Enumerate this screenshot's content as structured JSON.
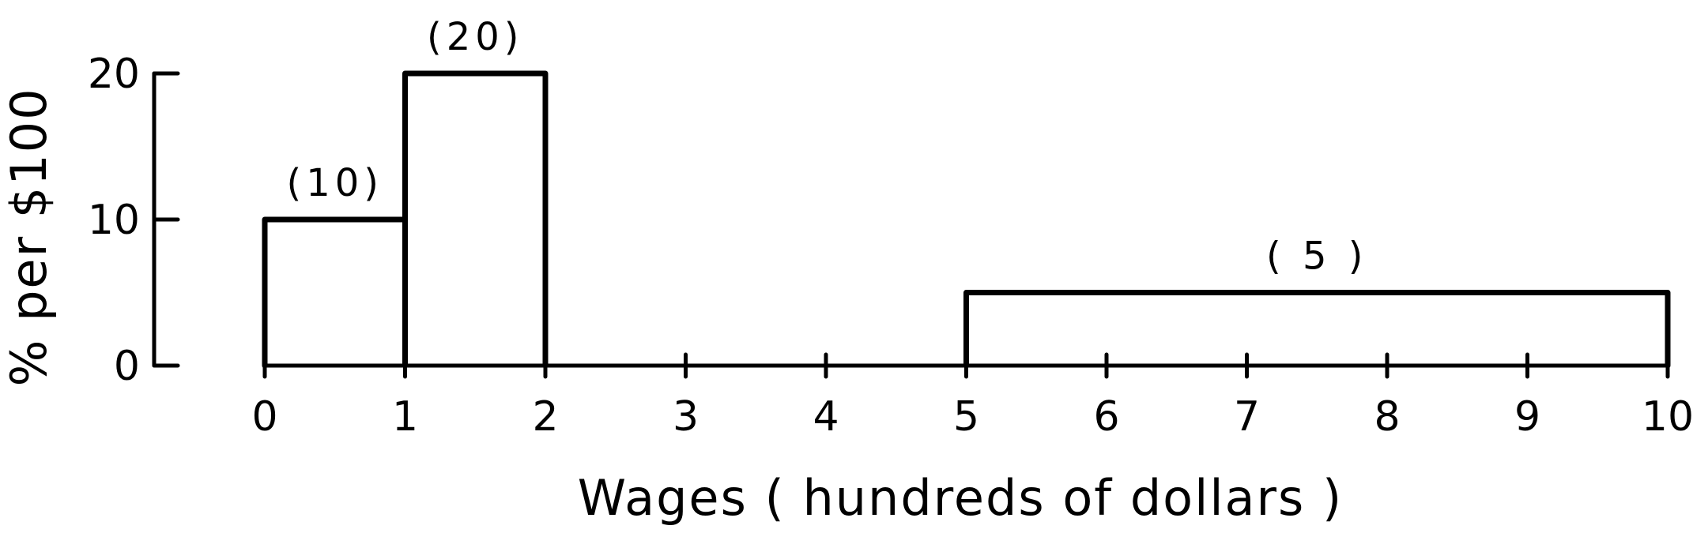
{
  "chart_data": {
    "type": "bar",
    "title": "",
    "xlabel": "Wages ( hundreds of dollars )",
    "ylabel": "% per $100",
    "xlim": [
      0,
      10
    ],
    "ylim": [
      0,
      20
    ],
    "x_ticks": [
      0,
      1,
      2,
      3,
      4,
      5,
      6,
      7,
      8,
      9,
      10
    ],
    "x_tick_labels": [
      "0",
      "1",
      "2",
      "3",
      "4",
      "5",
      "6",
      "7",
      "8",
      "9",
      "10"
    ],
    "y_ticks": [
      0,
      10,
      20
    ],
    "y_tick_labels": [
      "0",
      "10",
      "20"
    ],
    "bins": [
      {
        "x0": 0,
        "x1": 1,
        "value": 10,
        "label": "(10)"
      },
      {
        "x0": 1,
        "x1": 2,
        "value": 20,
        "label": "(20)"
      },
      {
        "x0": 5,
        "x1": 10,
        "value": 5,
        "label": "( 5 )"
      }
    ],
    "grid": false,
    "legend": "none",
    "color": "#000000"
  }
}
